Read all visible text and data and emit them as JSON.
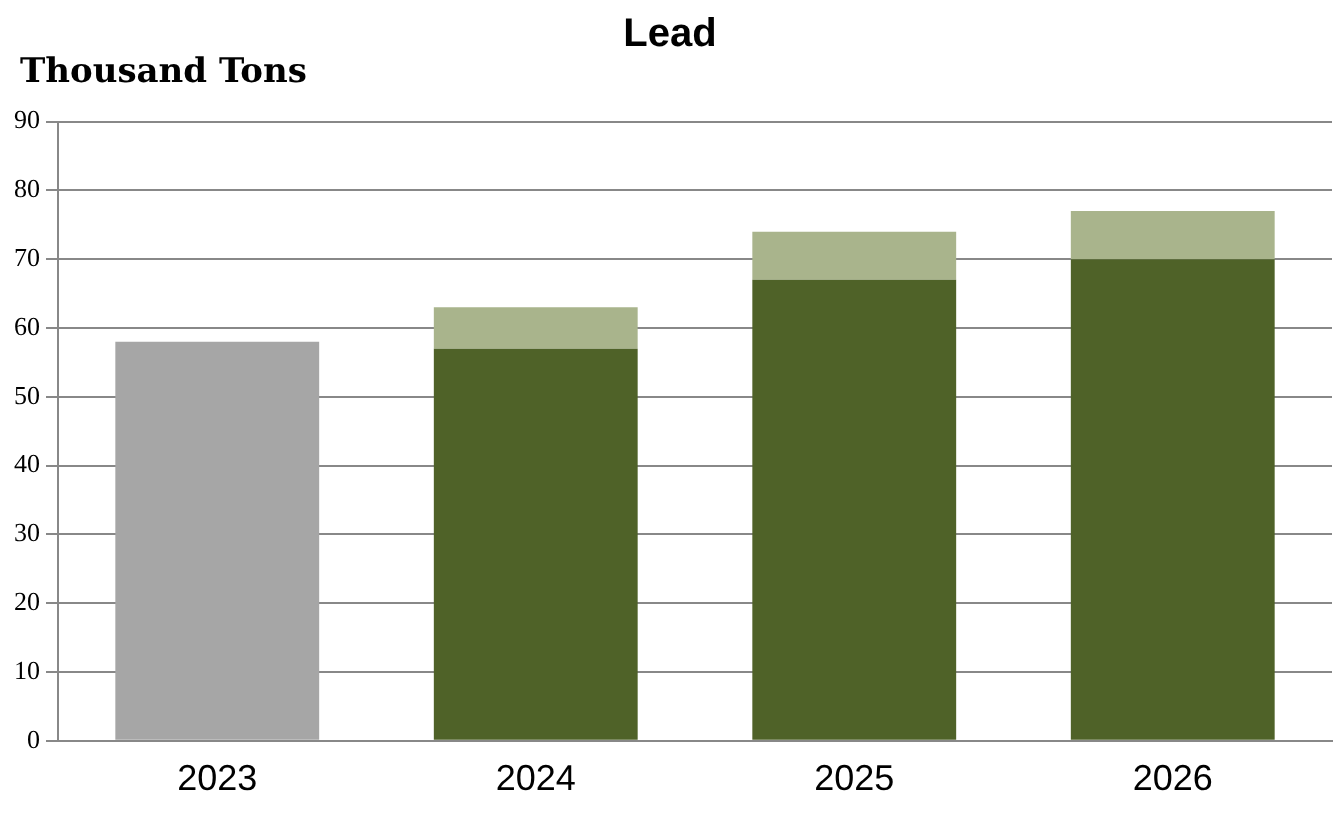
{
  "chart_data": {
    "type": "bar",
    "title": "Lead",
    "ylabel": "Thousand Tons",
    "categories": [
      "2023",
      "2024",
      "2025",
      "2026"
    ],
    "stacked": true,
    "series": [
      {
        "color": "#a6a6a6",
        "values": [
          58,
          null,
          null,
          null
        ]
      },
      {
        "color": "#4f6228",
        "values": [
          null,
          57,
          67,
          70
        ]
      },
      {
        "color": "#a9b48c",
        "values": [
          null,
          6,
          7,
          7
        ]
      }
    ],
    "ylim": [
      0,
      90
    ],
    "yticks": [
      0,
      10,
      20,
      30,
      40,
      50,
      60,
      70,
      80,
      90
    ],
    "grid": "y",
    "legend": false
  }
}
